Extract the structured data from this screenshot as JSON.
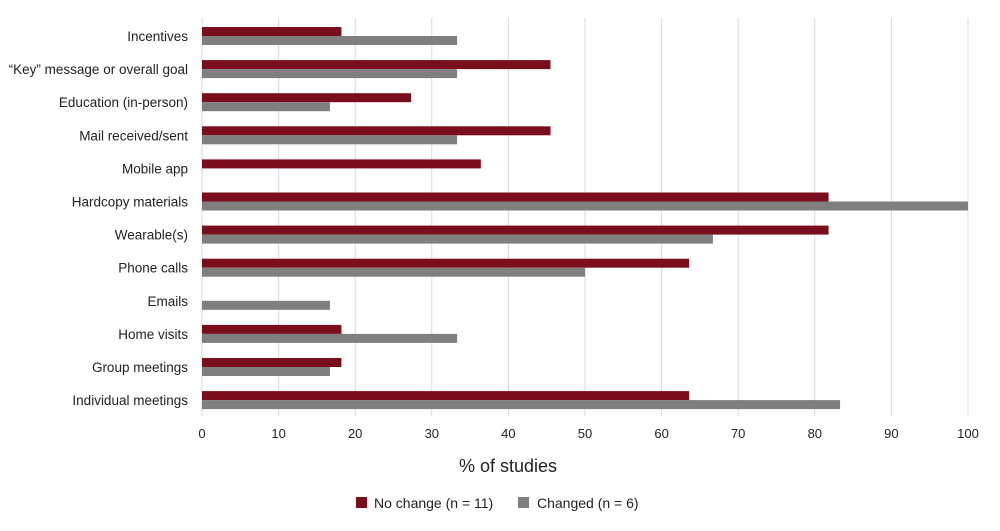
{
  "chart_data": {
    "type": "bar",
    "orientation": "horizontal",
    "categories": [
      "Incentives",
      "“Key” message or overall goal",
      "Education (in-person)",
      "Mail received/sent",
      "Mobile app",
      "Hardcopy materials",
      "Wearable(s)",
      "Phone calls",
      "Emails",
      "Home visits",
      "Group meetings",
      "Individual meetings"
    ],
    "series": [
      {
        "name": "No change (n = 11)",
        "color": "#7a0e1c",
        "values": [
          18.2,
          45.5,
          27.3,
          45.5,
          36.4,
          81.8,
          81.8,
          63.6,
          0,
          18.2,
          18.2,
          63.6
        ]
      },
      {
        "name": "Changed (n = 6)",
        "color": "#7f7f7f",
        "values": [
          33.3,
          33.3,
          16.7,
          33.3,
          0,
          100,
          66.7,
          50,
          16.7,
          33.3,
          16.7,
          83.3
        ]
      }
    ],
    "xlabel": "% of studies",
    "xlim": [
      0,
      100
    ],
    "xticks": [
      "0",
      "10",
      "20",
      "30",
      "40",
      "50",
      "60",
      "70",
      "80",
      "90",
      "100"
    ],
    "grid": true,
    "legend_position": "bottom"
  }
}
